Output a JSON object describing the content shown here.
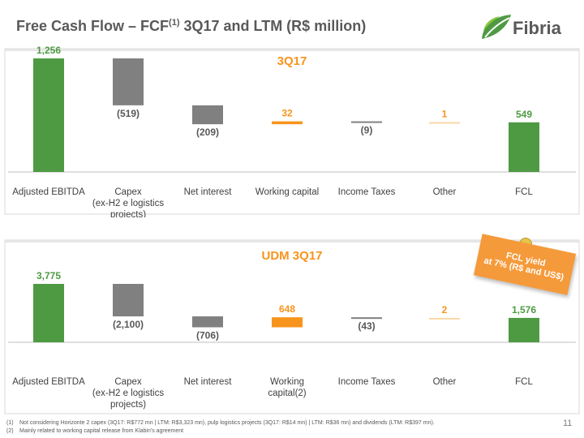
{
  "title": {
    "main": "Free Cash Flow – FCF",
    "superscript": "(1)",
    "rest": " 3Q17 and LTM (R$ million)"
  },
  "logo": {
    "text": "Fibria",
    "icon": "leaf-icon"
  },
  "callout": {
    "line1": "FCL yield",
    "line2": "at 7% (R$ and US$)"
  },
  "footnotes": [
    {
      "num": "(1)",
      "text": "Not considering Horizonte 2 capex (3Q17: R$772 mn | LTM: R$3,323 mn), pulp logistics projects (3Q17: R$14 mn) | LTM: R$36 mn) and dividends (LTM: R$397 mn)."
    },
    {
      "num": "(2)",
      "text": "Mainly related to working capital release from Klabin's agreement"
    }
  ],
  "page_number": "11",
  "colors": {
    "positive": "#4e9a43",
    "negative": "#808080",
    "working": "#f7941d",
    "title_orange": "#f7941d"
  },
  "chart_data": [
    {
      "type": "bar",
      "subtype": "waterfall",
      "title": "3Q17",
      "categories": [
        [
          "Adjusted EBITDA"
        ],
        [
          "Capex",
          "(ex-H2 e logistics",
          "projects)"
        ],
        [
          "Net interest"
        ],
        [
          "Working capital"
        ],
        [
          "Income Taxes"
        ],
        [
          "Other"
        ],
        [
          "FCL"
        ]
      ],
      "values": [
        1256,
        -519,
        -209,
        32,
        -9,
        1,
        549
      ],
      "labels": [
        "1,256",
        "(519)",
        "(209)",
        "32",
        "(9)",
        "1",
        "549"
      ],
      "kinds": [
        "total",
        "delta",
        "delta",
        "delta",
        "delta",
        "delta",
        "total"
      ]
    },
    {
      "type": "bar",
      "subtype": "waterfall",
      "title": "UDM 3Q17",
      "categories": [
        [
          "Adjusted EBITDA"
        ],
        [
          "Capex",
          "(ex-H2 e logistics",
          "projects)"
        ],
        [
          "Net interest"
        ],
        [
          "Working",
          "capital(2)"
        ],
        [
          "Income Taxes"
        ],
        [
          "Other"
        ],
        [
          "FCL"
        ]
      ],
      "values": [
        3775,
        -2100,
        -706,
        648,
        -43,
        2,
        1576
      ],
      "labels": [
        "3,775",
        "(2,100)",
        "(706)",
        "648",
        "(43)",
        "2",
        "1,576"
      ],
      "kinds": [
        "total",
        "delta",
        "delta",
        "delta",
        "delta",
        "delta",
        "total"
      ]
    }
  ]
}
